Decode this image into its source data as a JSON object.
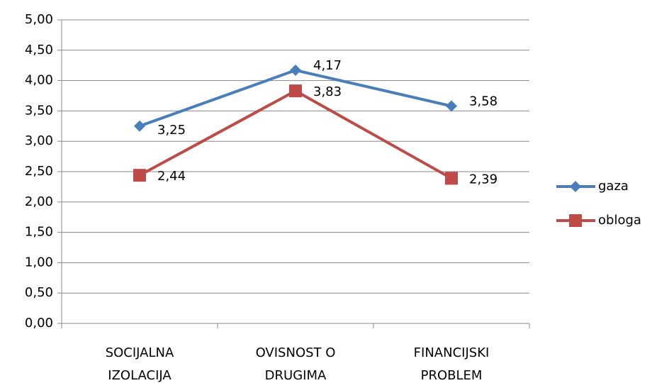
{
  "chart_data": {
    "type": "line",
    "categories": [
      "SOCIJALNA IZOLACIJA",
      "OVISNOST O DRUGIMA",
      "FINANCIJSKI PROBLEM"
    ],
    "series": [
      {
        "name": "gaza",
        "color": "#4a7ebb",
        "marker": "diamond",
        "values": [
          3.25,
          4.17,
          3.58
        ],
        "value_labels": [
          "3,25",
          "4,17",
          "3,58"
        ]
      },
      {
        "name": "obloga",
        "color": "#be4b48",
        "marker": "square",
        "values": [
          2.44,
          3.83,
          2.39
        ],
        "value_labels": [
          "2,44",
          "3,83",
          "2,39"
        ]
      }
    ],
    "ylim": [
      0,
      5
    ],
    "yticks": [
      {
        "value": 0,
        "label": "0,00"
      },
      {
        "value": 0.5,
        "label": "0,50"
      },
      {
        "value": 1,
        "label": "1,00"
      },
      {
        "value": 1.5,
        "label": "1,50"
      },
      {
        "value": 2,
        "label": "2,00"
      },
      {
        "value": 2.5,
        "label": "2,50"
      },
      {
        "value": 3,
        "label": "3,00"
      },
      {
        "value": 3.5,
        "label": "3,50"
      },
      {
        "value": 4,
        "label": "4,00"
      },
      {
        "value": 4.5,
        "label": "4,50"
      },
      {
        "value": 5,
        "label": "5,00"
      }
    ],
    "grid": true,
    "legend": "right"
  }
}
